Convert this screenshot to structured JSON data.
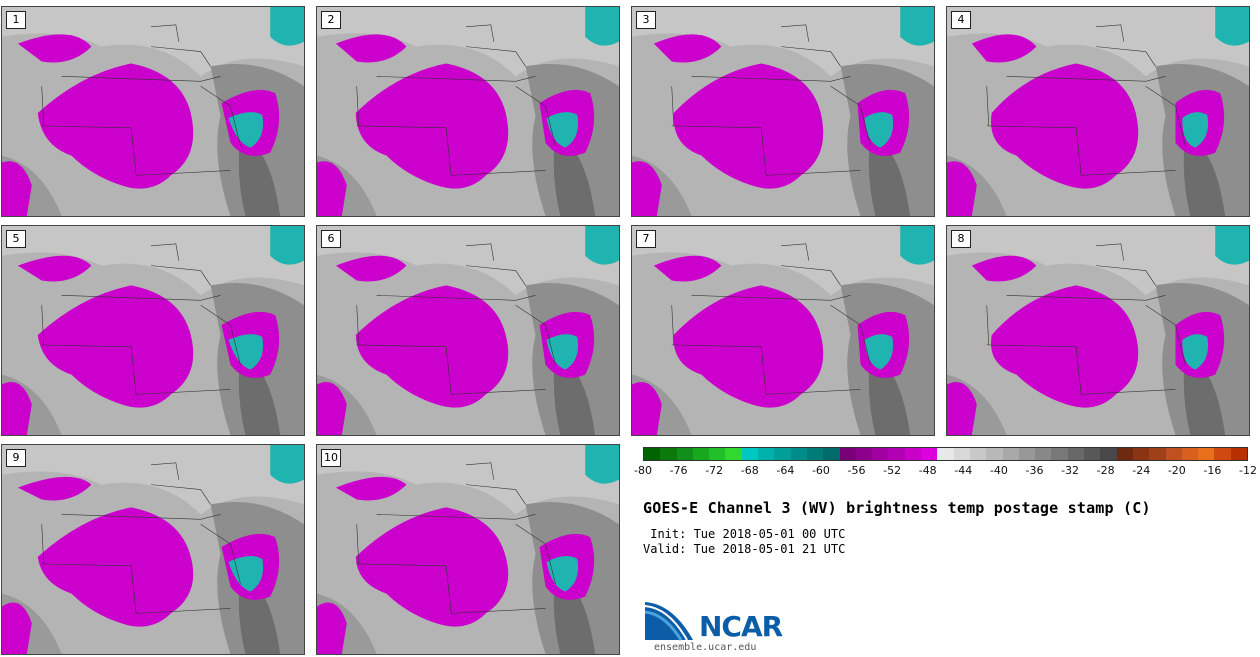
{
  "panels": [
    {
      "number": "1"
    },
    {
      "number": "2"
    },
    {
      "number": "3"
    },
    {
      "number": "4"
    },
    {
      "number": "5"
    },
    {
      "number": "6"
    },
    {
      "number": "7"
    },
    {
      "number": "8"
    },
    {
      "number": "9"
    },
    {
      "number": "10"
    }
  ],
  "colorbar": {
    "ticks": [
      "-80",
      "-76",
      "-72",
      "-68",
      "-64",
      "-60",
      "-56",
      "-52",
      "-48",
      "-44",
      "-40",
      "-36",
      "-32",
      "-28",
      "-24",
      "-20",
      "-16",
      "-12"
    ],
    "colors": [
      "#006400",
      "#0a7a0a",
      "#10901a",
      "#18a820",
      "#22c028",
      "#30d830",
      "#00c8c0",
      "#00b0aa",
      "#009e98",
      "#008c88",
      "#007c78",
      "#006c6a",
      "#7a007a",
      "#8c008c",
      "#a000a0",
      "#b400b4",
      "#c800c8",
      "#dc00dc",
      "#e8e8e8",
      "#d8d8d8",
      "#c8c8c8",
      "#b8b8b8",
      "#a8a8a8",
      "#989898",
      "#888888",
      "#787878",
      "#686868",
      "#585858",
      "#484848",
      "#6e2a10",
      "#8a3414",
      "#a04018",
      "#c05020",
      "#d8601e",
      "#e8701a",
      "#d04a10",
      "#b83000"
    ]
  },
  "title": "GOES-E Channel 3 (WV) brightness temp postage stamp (C)",
  "init_line": " Init: Tue 2018-05-01 00 UTC",
  "valid_line": "Valid: Tue 2018-05-01 21 UTC",
  "logo": {
    "name": "NCAR",
    "url": "ensemble.ucar.edu"
  }
}
